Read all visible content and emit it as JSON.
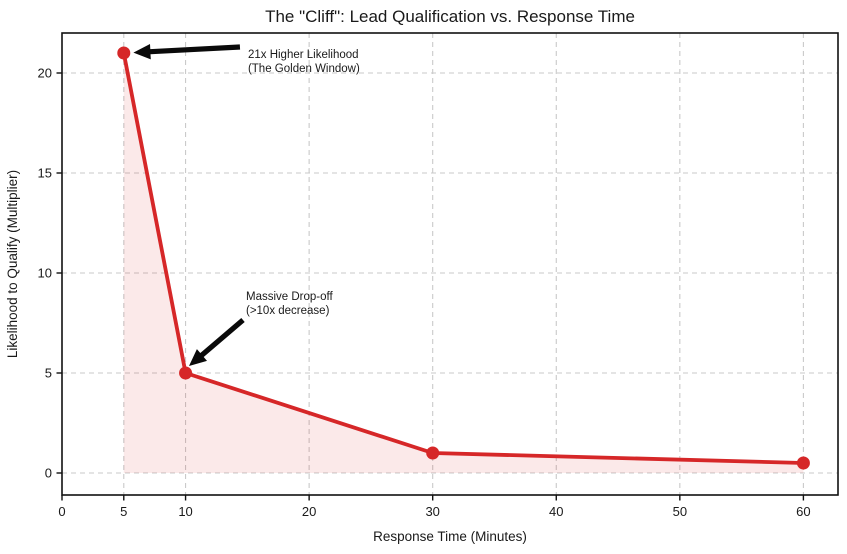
{
  "chart_data": {
    "type": "line",
    "title": "The \"Cliff\": Lead Qualification vs. Response Time",
    "xlabel": "Response Time (Minutes)",
    "ylabel": "Likelihood to Qualify (Multiplier)",
    "x": [
      5,
      10,
      30,
      60
    ],
    "y": [
      21,
      5,
      1,
      0.5
    ],
    "xticks": [
      0,
      5,
      10,
      20,
      30,
      40,
      50,
      60
    ],
    "yticks": [
      0,
      5,
      10,
      15,
      20
    ],
    "xlim": [
      0,
      62.8
    ],
    "ylim": [
      -1.1,
      22
    ],
    "grid": true,
    "grid_style": "dashed",
    "legend_position": "none",
    "fill_between": {
      "baseline": 0,
      "from_x": 5,
      "to_x": 60
    },
    "colors": {
      "line": "#d62728",
      "marker": "#d62728",
      "fill": "rgba(214,39,40,0.10)",
      "grid": "#c9c9c9",
      "spine": "#111111",
      "text": "#1a1a1a",
      "arrow": "#0a0a0a"
    },
    "annotations": [
      {
        "text_lines": [
          "21x Higher Likelihood",
          "(The Golden Window)"
        ],
        "text_xy": [
          15.05,
          20.75
        ],
        "arrow_tail": [
          14.4,
          21.3
        ],
        "arrow_tip": [
          5.78,
          21.02
        ]
      },
      {
        "text_lines": [
          "Massive Drop-off",
          "(>10x decrease)"
        ],
        "text_xy": [
          14.89,
          8.65
        ],
        "arrow_tail": [
          14.65,
          7.65
        ],
        "arrow_tip": [
          10.28,
          5.35
        ]
      }
    ]
  }
}
